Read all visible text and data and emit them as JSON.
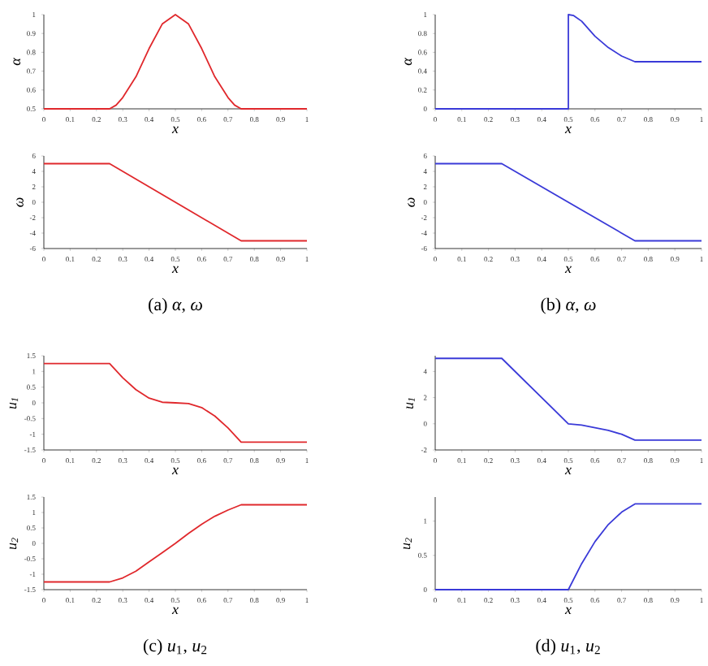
{
  "chart_data": [
    {
      "type": "line",
      "xlabel": "x",
      "ylabel": "α",
      "color": "#e0282c",
      "x": [
        0,
        0.25,
        0.275,
        0.3,
        0.35,
        0.4,
        0.45,
        0.5,
        0.55,
        0.6,
        0.65,
        0.7,
        0.725,
        0.75,
        1
      ],
      "values": [
        0.5,
        0.5,
        0.52,
        0.56,
        0.67,
        0.82,
        0.95,
        1,
        0.95,
        0.82,
        0.67,
        0.56,
        0.52,
        0.5,
        0.5
      ],
      "xlim": [
        0,
        1
      ],
      "ylim": [
        0.5,
        1
      ],
      "xticks": [
        0,
        0.1,
        0.2,
        0.3,
        0.4,
        0.5,
        0.6,
        0.7,
        0.8,
        0.9,
        1
      ],
      "yticks": [
        0.5,
        0.6,
        0.7,
        0.8,
        0.9,
        1
      ]
    },
    {
      "type": "line",
      "xlabel": "x",
      "ylabel": "ω",
      "color": "#e0282c",
      "x": [
        0,
        0.25,
        0.75,
        1
      ],
      "values": [
        5,
        5,
        -5,
        -5
      ],
      "xlim": [
        0,
        1
      ],
      "ylim": [
        -6,
        6
      ],
      "xticks": [
        0,
        0.1,
        0.2,
        0.3,
        0.4,
        0.5,
        0.6,
        0.7,
        0.8,
        0.9,
        1
      ],
      "yticks": [
        -6,
        -4,
        -2,
        0,
        2,
        4,
        6
      ],
      "annotations": [
        "(a) *α*, *ω*"
      ]
    },
    {
      "type": "line",
      "xlabel": "x",
      "ylabel": "α",
      "color": "#3a3ad8",
      "x": [
        0,
        0.5,
        0.5,
        0.52,
        0.55,
        0.6,
        0.65,
        0.7,
        0.75,
        1
      ],
      "values": [
        0,
        0,
        1,
        0.99,
        0.93,
        0.77,
        0.65,
        0.56,
        0.5,
        0.5
      ],
      "xlim": [
        0,
        1
      ],
      "ylim": [
        0,
        1
      ],
      "xticks": [
        0,
        0.1,
        0.2,
        0.3,
        0.4,
        0.5,
        0.6,
        0.7,
        0.8,
        0.9,
        1
      ],
      "yticks": [
        0,
        0.2,
        0.4,
        0.6,
        0.8,
        1
      ]
    },
    {
      "type": "line",
      "xlabel": "x",
      "ylabel": "ω",
      "color": "#3a3ad8",
      "x": [
        0,
        0.25,
        0.75,
        1
      ],
      "values": [
        5,
        5,
        -5,
        -5
      ],
      "xlim": [
        0,
        1
      ],
      "ylim": [
        -6,
        6
      ],
      "xticks": [
        0,
        0.1,
        0.2,
        0.3,
        0.4,
        0.5,
        0.6,
        0.7,
        0.8,
        0.9,
        1
      ],
      "yticks": [
        -6,
        -4,
        -2,
        0,
        2,
        4,
        6
      ],
      "annotations": [
        "(b) *α*, *ω*"
      ]
    },
    {
      "type": "line",
      "xlabel": "x",
      "ylabel": "*u*$_{1}$",
      "color": "#e0282c",
      "x": [
        0,
        0.25,
        0.3,
        0.35,
        0.4,
        0.45,
        0.5,
        0.55,
        0.6,
        0.65,
        0.7,
        0.75,
        1
      ],
      "values": [
        1.25,
        1.25,
        0.8,
        0.42,
        0.15,
        0.02,
        0,
        -0.02,
        -0.15,
        -0.42,
        -0.8,
        -1.25,
        -1.25
      ],
      "xlim": [
        0,
        1
      ],
      "ylim": [
        -1.5,
        1.5
      ],
      "xticks": [
        0,
        0.1,
        0.2,
        0.3,
        0.4,
        0.5,
        0.6,
        0.7,
        0.8,
        0.9,
        1
      ],
      "yticks": [
        -1.5,
        -1,
        -0.5,
        0,
        0.5,
        1,
        1.5
      ]
    },
    {
      "type": "line",
      "xlabel": "x",
      "ylabel": "*u*$_{2}$",
      "color": "#e0282c",
      "x": [
        0,
        0.25,
        0.3,
        0.35,
        0.4,
        0.45,
        0.5,
        0.55,
        0.6,
        0.65,
        0.7,
        0.75,
        1
      ],
      "values": [
        -1.25,
        -1.25,
        -1.12,
        -0.9,
        -0.6,
        -0.3,
        0,
        0.32,
        0.62,
        0.88,
        1.08,
        1.25,
        1.25
      ],
      "xlim": [
        0,
        1
      ],
      "ylim": [
        -1.5,
        1.5
      ],
      "xticks": [
        0,
        0.1,
        0.2,
        0.3,
        0.4,
        0.5,
        0.6,
        0.7,
        0.8,
        0.9,
        1
      ],
      "yticks": [
        -1.5,
        -1,
        -0.5,
        0,
        0.5,
        1,
        1.5
      ],
      "annotations": [
        "(c) *u*$_{1}$, *u*$_{2}$"
      ]
    },
    {
      "type": "line",
      "xlabel": "x",
      "ylabel": "*u*$_{1}$",
      "color": "#3a3ad8",
      "x": [
        0,
        0.25,
        0.5,
        0.55,
        0.6,
        0.65,
        0.7,
        0.75,
        1
      ],
      "values": [
        5,
        5,
        0,
        -0.1,
        -0.3,
        -0.5,
        -0.8,
        -1.25,
        -1.25
      ],
      "xlim": [
        0,
        1
      ],
      "ylim": [
        -2,
        5.2
      ],
      "xticks": [
        0,
        0.1,
        0.2,
        0.3,
        0.4,
        0.5,
        0.6,
        0.7,
        0.8,
        0.9,
        1
      ],
      "yticks": [
        -2,
        0,
        2,
        4
      ]
    },
    {
      "type": "line",
      "xlabel": "x",
      "ylabel": "*u*$_{2}$",
      "color": "#3a3ad8",
      "x": [
        0,
        0.5,
        0.55,
        0.6,
        0.65,
        0.7,
        0.75,
        1
      ],
      "values": [
        0,
        0,
        0.38,
        0.7,
        0.95,
        1.13,
        1.25,
        1.25
      ],
      "xlim": [
        0,
        1
      ],
      "ylim": [
        0,
        1.35
      ],
      "xticks": [
        0,
        0.1,
        0.2,
        0.3,
        0.4,
        0.5,
        0.6,
        0.7,
        0.8,
        0.9,
        1
      ],
      "yticks": [
        0,
        0.5,
        1
      ],
      "annotations": [
        "(d) *u*$_{1}$, *u*$_{2}$"
      ]
    }
  ]
}
